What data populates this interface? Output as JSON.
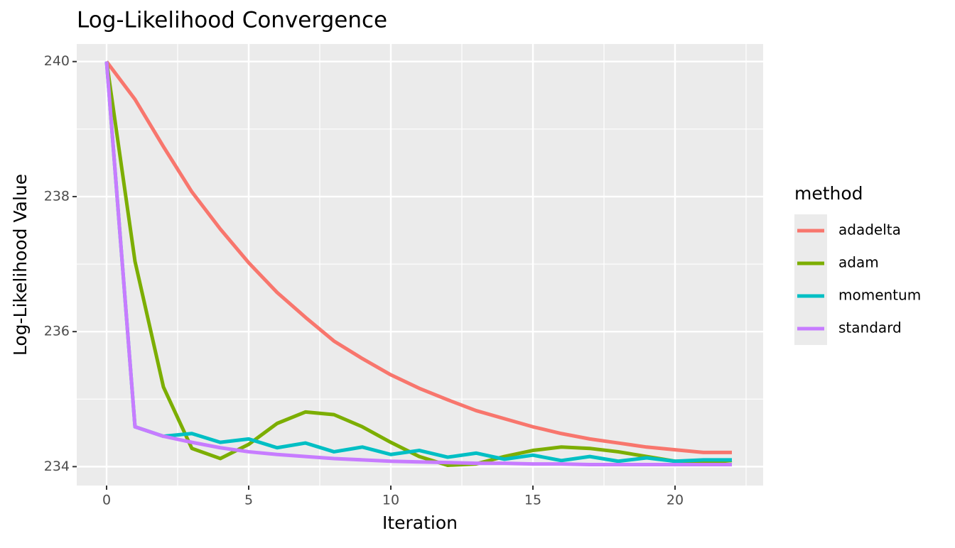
{
  "chart_data": {
    "type": "line",
    "title": "Log-Likelihood Convergence",
    "xlabel": "Iteration",
    "ylabel": "Log-Likelihood Value",
    "legend_title": "method",
    "legend": "right",
    "grid": true,
    "x": [
      0,
      1,
      2,
      3,
      4,
      5,
      6,
      7,
      8,
      9,
      10,
      11,
      12,
      13,
      14,
      15,
      16,
      17,
      18,
      19,
      20,
      21,
      22
    ],
    "xlim": [
      -1.05,
      23.1
    ],
    "xticks": [
      0,
      5,
      10,
      15,
      20
    ],
    "xminor": [
      2.5,
      7.5,
      12.5,
      17.5,
      22.5
    ],
    "ylim": [
      233.72,
      240.26
    ],
    "yticks": [
      234,
      236,
      238,
      240
    ],
    "yminor": [
      235,
      237,
      239
    ],
    "series": [
      {
        "name": "adadelta",
        "color": "#F8766D",
        "values": [
          240,
          239.44,
          238.74,
          238.07,
          237.52,
          237.02,
          236.58,
          236.21,
          235.86,
          235.6,
          235.36,
          235.16,
          234.99,
          234.83,
          234.71,
          234.59,
          234.49,
          234.41,
          234.35,
          234.29,
          234.25,
          234.21,
          234.21
        ]
      },
      {
        "name": "adam",
        "color": "#7CAE00",
        "values": [
          240,
          237.04,
          235.18,
          234.27,
          234.12,
          234.33,
          234.64,
          234.81,
          234.77,
          234.59,
          234.36,
          234.15,
          234.02,
          234.04,
          234.15,
          234.24,
          234.29,
          234.27,
          234.22,
          234.15,
          234.08,
          234.06,
          234.09
        ]
      },
      {
        "name": "momentum",
        "color": "#00BFC4",
        "values": [
          240,
          234.59,
          234.45,
          234.49,
          234.36,
          234.41,
          234.28,
          234.35,
          234.22,
          234.29,
          234.18,
          234.24,
          234.14,
          234.2,
          234.11,
          234.17,
          234.09,
          234.15,
          234.08,
          234.13,
          234.08,
          234.1,
          234.1
        ]
      },
      {
        "name": "standard",
        "color": "#C77CFF",
        "values": [
          240,
          234.59,
          234.45,
          234.36,
          234.28,
          234.22,
          234.18,
          234.15,
          234.12,
          234.1,
          234.08,
          234.07,
          234.06,
          234.05,
          234.05,
          234.04,
          234.04,
          234.03,
          234.03,
          234.03,
          234.03,
          234.03,
          234.03
        ]
      }
    ]
  }
}
